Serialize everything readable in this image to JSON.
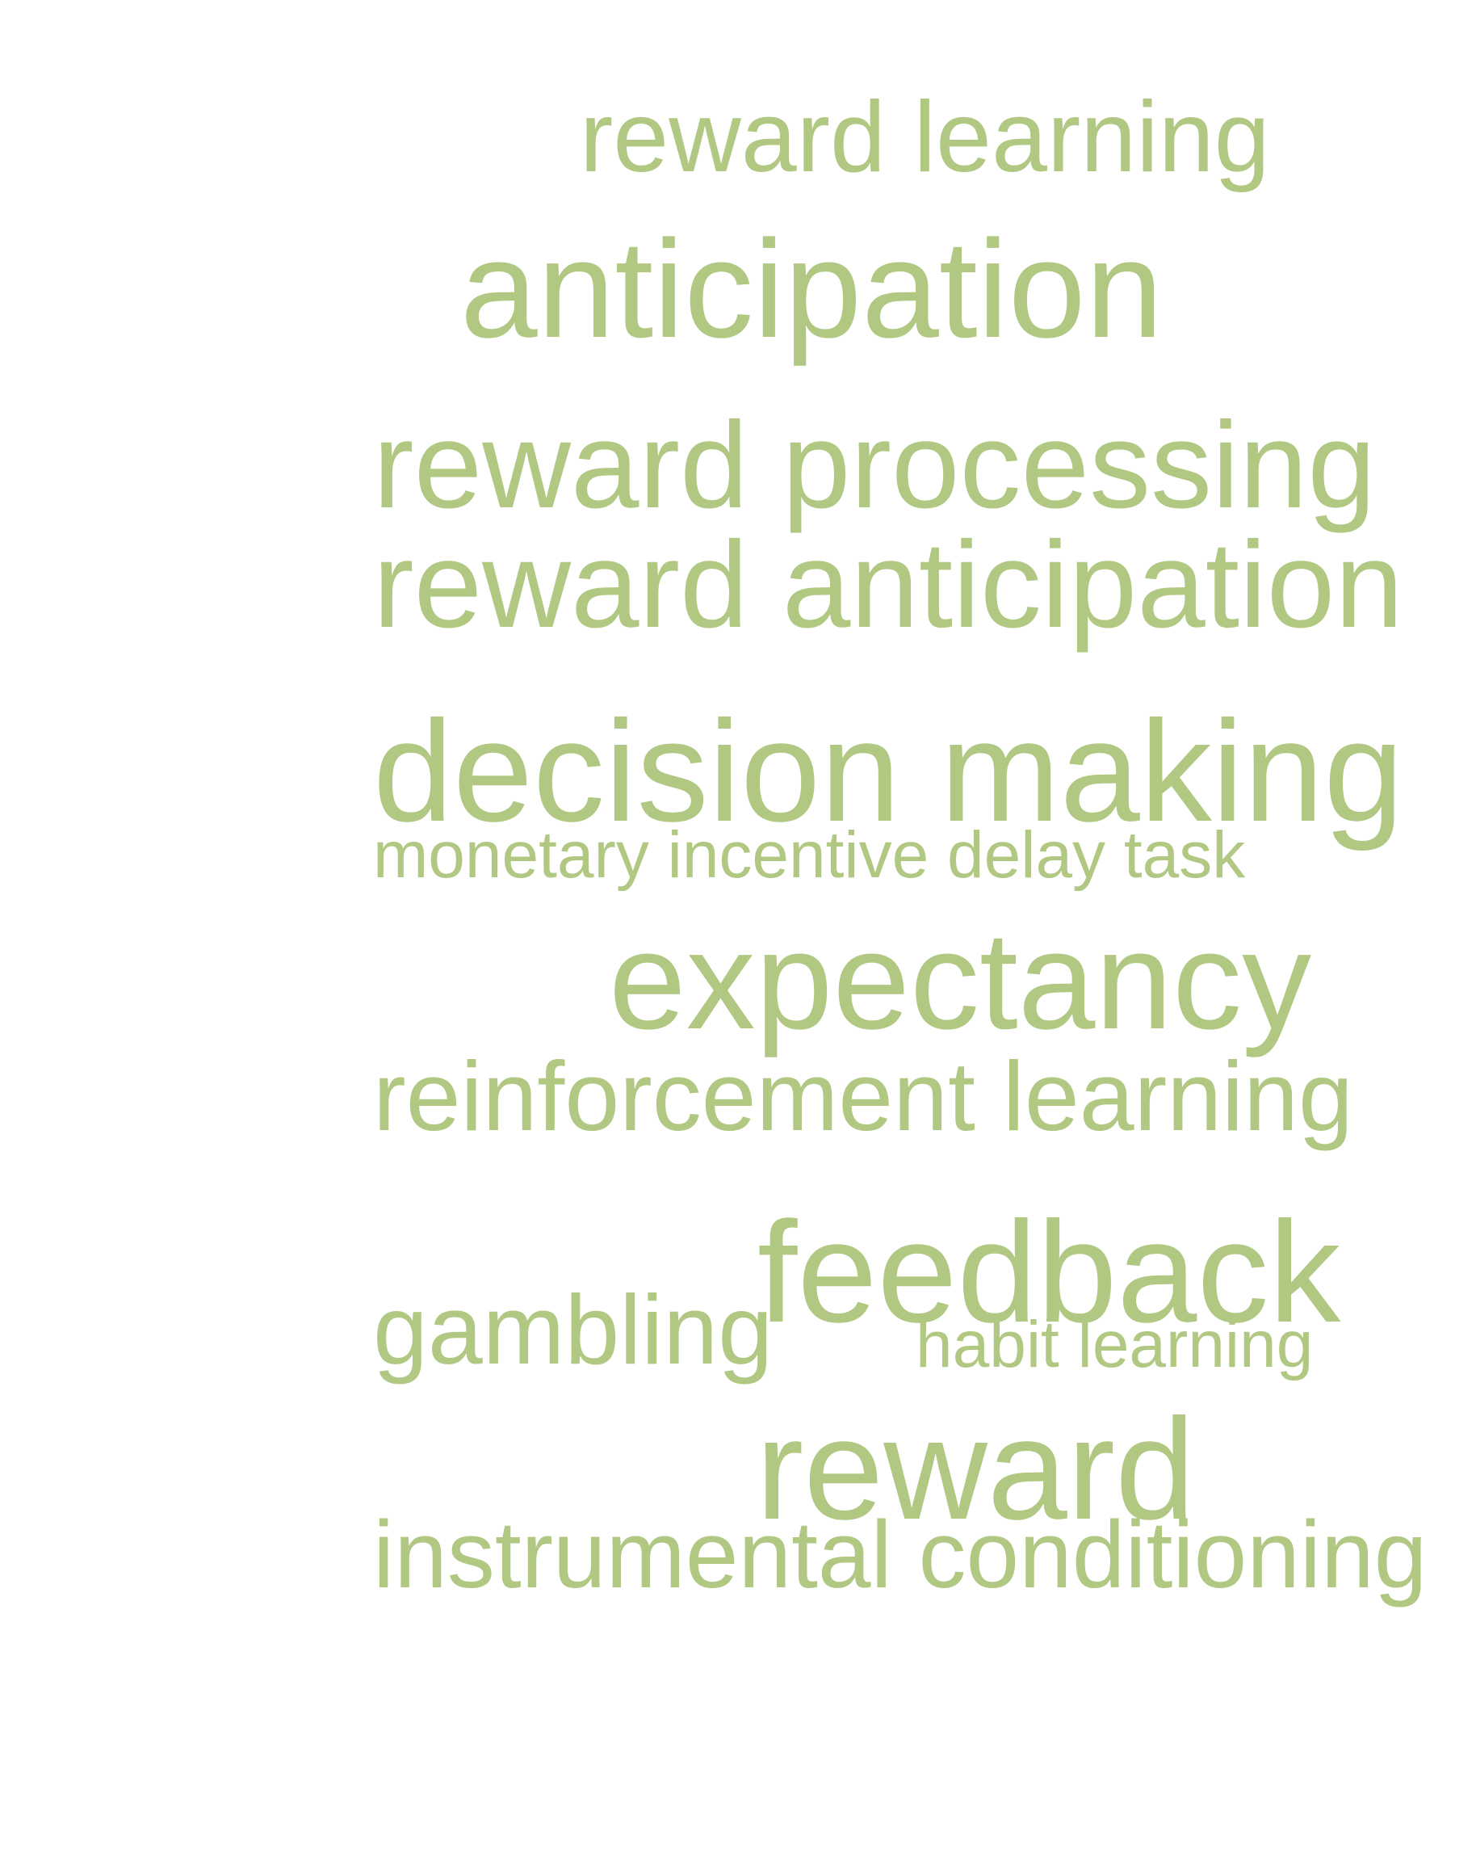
{
  "word_cloud": {
    "color": "#b1c882",
    "words": [
      "reward learning",
      "anticipation",
      "reward processing",
      "reward anticipation",
      "decision making",
      "monetary incentive delay task",
      "expectancy",
      "reinforcement learning",
      "gambling",
      "feedback",
      "habit learning",
      "reward",
      "instrumental conditioning"
    ]
  }
}
